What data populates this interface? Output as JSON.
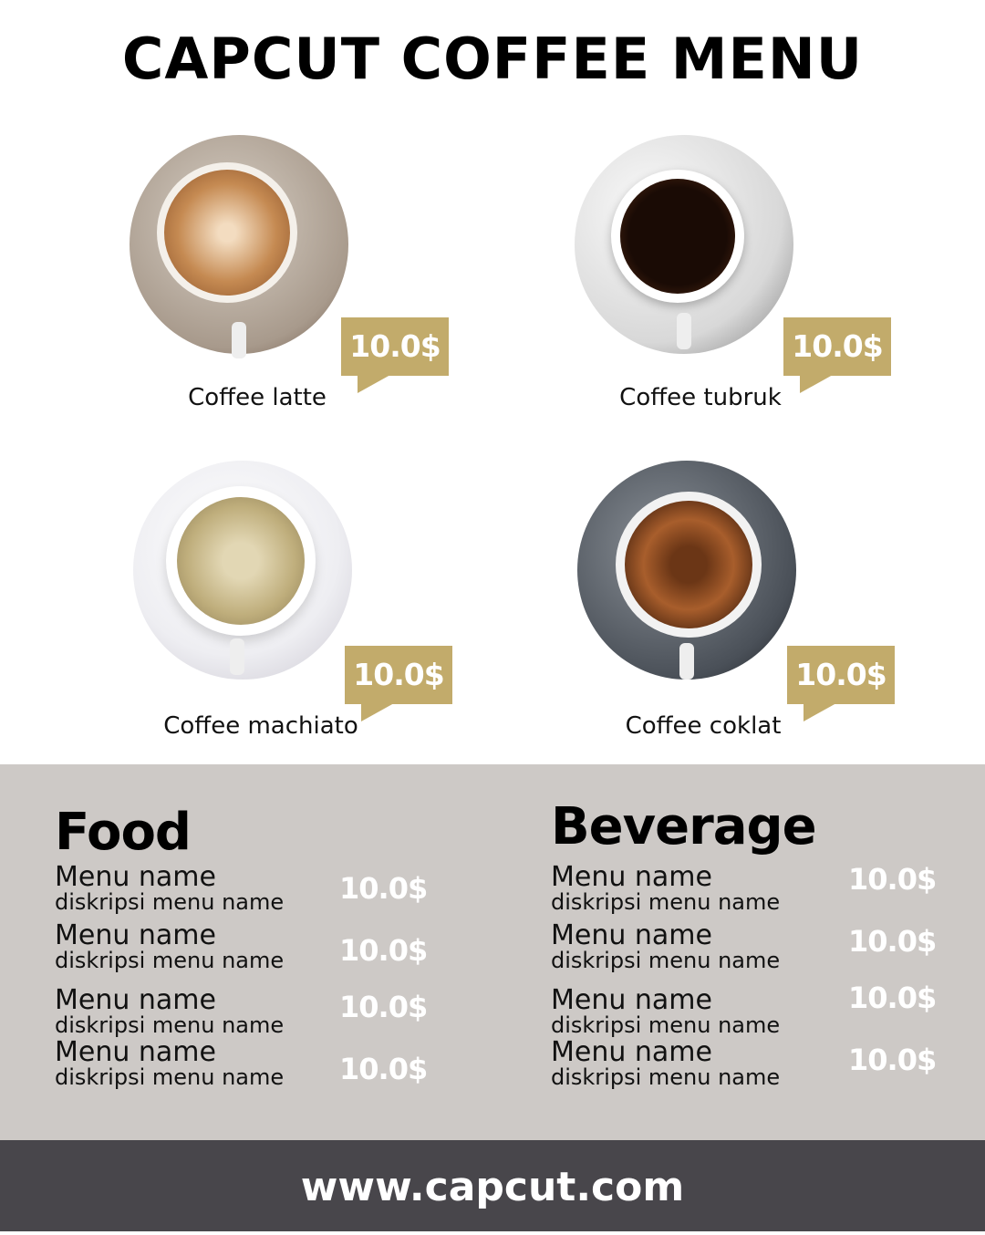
{
  "title": "CAPCUT COFFEE MENU",
  "colors": {
    "accent": "#c2ab6b",
    "panel": "#cdc9c6",
    "footer": "#48464b"
  },
  "featured": [
    {
      "name": "Coffee latte",
      "price": "10.0$"
    },
    {
      "name": "Coffee tubruk",
      "price": "10.0$"
    },
    {
      "name": "Coffee machiato",
      "price": "10.0$"
    },
    {
      "name": "Coffee coklat",
      "price": "10.0$"
    }
  ],
  "food": {
    "title": "Food",
    "items": [
      {
        "name": "Menu name",
        "desc": "diskripsi menu name",
        "price": "10.0$"
      },
      {
        "name": "Menu name",
        "desc": "diskripsi menu name",
        "price": "10.0$"
      },
      {
        "name": "Menu name",
        "desc": "diskripsi menu name",
        "price": "10.0$"
      },
      {
        "name": "Menu name",
        "desc": "diskripsi menu name",
        "price": "10.0$"
      }
    ]
  },
  "beverage": {
    "title": "Beverage",
    "items": [
      {
        "name": "Menu name",
        "desc": "diskripsi menu name",
        "price": "10.0$"
      },
      {
        "name": "Menu name",
        "desc": "diskripsi menu name",
        "price": "10.0$"
      },
      {
        "name": "Menu name",
        "desc": "diskripsi menu name",
        "price": "10.0$"
      },
      {
        "name": "Menu name",
        "desc": "diskripsi menu name",
        "price": "10.0$"
      }
    ]
  },
  "footer": {
    "url": "www.capcut.com"
  }
}
